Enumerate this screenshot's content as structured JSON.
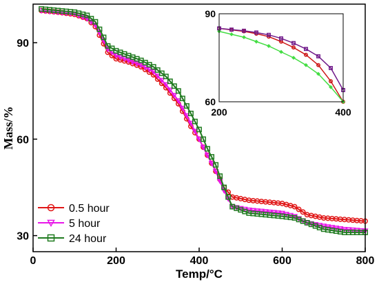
{
  "chart_data": [
    {
      "type": "line",
      "xlabel": "Temp/°C",
      "ylabel": "Mass/%",
      "xlim": [
        0,
        800
      ],
      "ylim": [
        25,
        102
      ],
      "xticks": [
        0,
        200,
        400,
        600,
        800
      ],
      "yticks": [
        30,
        60,
        90
      ],
      "legend_position": "bottom-left",
      "series": [
        {
          "name": "0.5 hour",
          "color": "#e01515",
          "marker": "circle",
          "points": [
            [
              20,
              100
            ],
            [
              60,
              99.5
            ],
            [
              100,
              98.8
            ],
            [
              130,
              97.5
            ],
            [
              150,
              95
            ],
            [
              165,
              91
            ],
            [
              180,
              87
            ],
            [
              200,
              85
            ],
            [
              230,
              84
            ],
            [
              260,
              82.5
            ],
            [
              290,
              80
            ],
            [
              320,
              76
            ],
            [
              350,
              71
            ],
            [
              380,
              64
            ],
            [
              400,
              60
            ],
            [
              420,
              55
            ],
            [
              440,
              50
            ],
            [
              460,
              45
            ],
            [
              480,
              42
            ],
            [
              520,
              41
            ],
            [
              560,
              40.5
            ],
            [
              600,
              40
            ],
            [
              630,
              39
            ],
            [
              660,
              36.5
            ],
            [
              700,
              35.5
            ],
            [
              750,
              35
            ],
            [
              800,
              34.5
            ]
          ]
        },
        {
          "name": "5 hour",
          "color": "#e815e8",
          "marker": "triangle-down",
          "points": [
            [
              20,
              100
            ],
            [
              60,
              99.5
            ],
            [
              100,
              99
            ],
            [
              130,
              97.5
            ],
            [
              150,
              95.5
            ],
            [
              165,
              92
            ],
            [
              180,
              88
            ],
            [
              200,
              86
            ],
            [
              230,
              84.5
            ],
            [
              260,
              83
            ],
            [
              290,
              81
            ],
            [
              320,
              77
            ],
            [
              350,
              72
            ],
            [
              380,
              65
            ],
            [
              400,
              60
            ],
            [
              420,
              55
            ],
            [
              440,
              50
            ],
            [
              460,
              44
            ],
            [
              480,
              39
            ],
            [
              520,
              38
            ],
            [
              560,
              37.5
            ],
            [
              600,
              37
            ],
            [
              630,
              36
            ],
            [
              660,
              34
            ],
            [
              700,
              33
            ],
            [
              750,
              32
            ],
            [
              800,
              31.5
            ]
          ]
        },
        {
          "name": "24 hour",
          "color": "#1f7a1f",
          "marker": "square",
          "points": [
            [
              20,
              100.5
            ],
            [
              60,
              100
            ],
            [
              100,
              99.5
            ],
            [
              130,
              98.5
            ],
            [
              150,
              96.5
            ],
            [
              165,
              93
            ],
            [
              180,
              89
            ],
            [
              200,
              87.5
            ],
            [
              230,
              86
            ],
            [
              260,
              84.5
            ],
            [
              290,
              82.5
            ],
            [
              320,
              79.5
            ],
            [
              350,
              75
            ],
            [
              380,
              68
            ],
            [
              400,
              63
            ],
            [
              420,
              57
            ],
            [
              440,
              52
            ],
            [
              460,
              45
            ],
            [
              480,
              39
            ],
            [
              520,
              37
            ],
            [
              560,
              36.5
            ],
            [
              600,
              36
            ],
            [
              630,
              35.5
            ],
            [
              660,
              34
            ],
            [
              700,
              32
            ],
            [
              750,
              31
            ],
            [
              800,
              31
            ]
          ]
        }
      ]
    },
    {
      "type": "line",
      "role": "inset",
      "xlim": [
        200,
        400
      ],
      "ylim": [
        60,
        90
      ],
      "xticks": [
        200,
        400
      ],
      "yticks": [
        60,
        90
      ],
      "series": [
        {
          "name": "0.5 hour",
          "color": "#cc1515",
          "marker": "circle",
          "points": [
            [
              200,
              85
            ],
            [
              220,
              84.5
            ],
            [
              240,
              84
            ],
            [
              260,
              83.2
            ],
            [
              280,
              82.2
            ],
            [
              300,
              80.5
            ],
            [
              320,
              78.5
            ],
            [
              340,
              76
            ],
            [
              360,
              72.5
            ],
            [
              380,
              67
            ],
            [
              400,
              60
            ]
          ]
        },
        {
          "name": "5 hour",
          "color": "#701a8a",
          "marker": "square",
          "points": [
            [
              200,
              85
            ],
            [
              220,
              84.6
            ],
            [
              240,
              84.2
            ],
            [
              260,
              83.6
            ],
            [
              280,
              82.8
            ],
            [
              300,
              81.6
            ],
            [
              320,
              80
            ],
            [
              340,
              78
            ],
            [
              360,
              75.5
            ],
            [
              380,
              71.5
            ],
            [
              400,
              64
            ]
          ]
        },
        {
          "name": "24 hour",
          "color": "#44dd44",
          "marker": "diamond",
          "points": [
            [
              200,
              84
            ],
            [
              220,
              83
            ],
            [
              240,
              82
            ],
            [
              260,
              80.5
            ],
            [
              280,
              79
            ],
            [
              300,
              77
            ],
            [
              320,
              75
            ],
            [
              340,
              72.5
            ],
            [
              360,
              69.5
            ],
            [
              380,
              65
            ],
            [
              400,
              60
            ]
          ]
        }
      ]
    }
  ]
}
